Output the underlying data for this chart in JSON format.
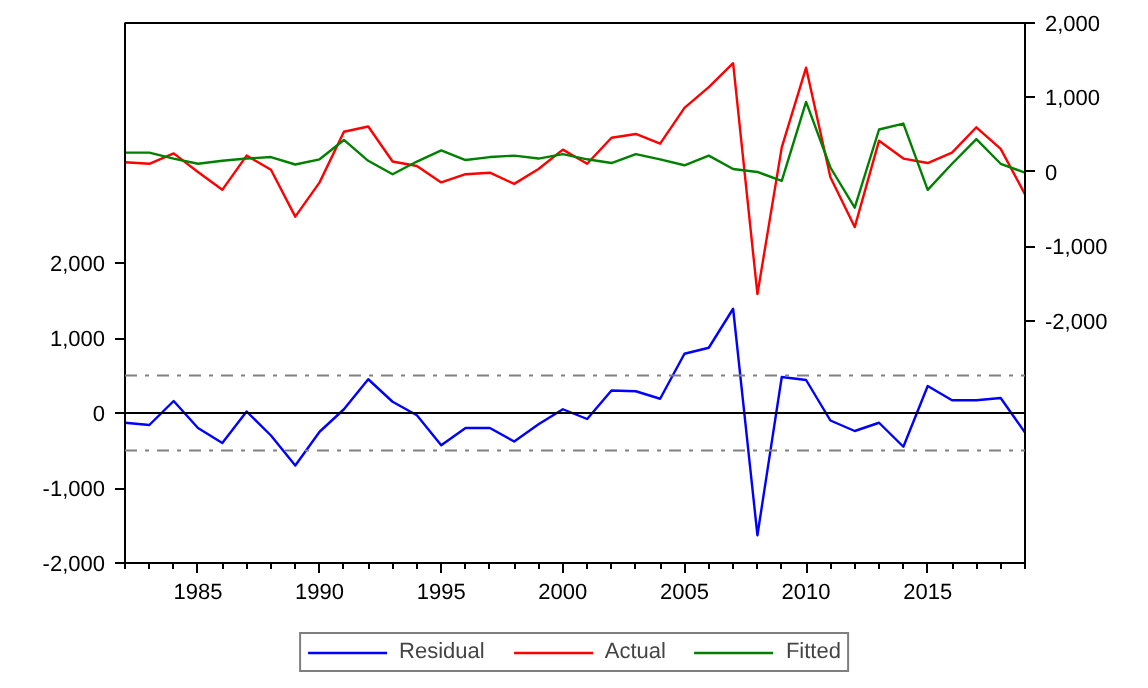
{
  "chart_data": {
    "type": "line",
    "x": [
      1982,
      1983,
      1984,
      1985,
      1986,
      1987,
      1988,
      1989,
      1990,
      1991,
      1992,
      1993,
      1994,
      1995,
      1996,
      1997,
      1998,
      1999,
      2000,
      2001,
      2002,
      2003,
      2004,
      2005,
      2006,
      2007,
      2008,
      2009,
      2010,
      2011,
      2012,
      2013,
      2014,
      2015,
      2016,
      2017,
      2018,
      2019
    ],
    "series": [
      {
        "name": "Residual",
        "color": "#0000ff",
        "values": [
          -130,
          -160,
          160,
          -200,
          -400,
          20,
          -300,
          -700,
          -250,
          50,
          450,
          150,
          -30,
          -430,
          -200,
          -200,
          -380,
          -150,
          50,
          -80,
          300,
          290,
          190,
          790,
          870,
          1390,
          -1630,
          480,
          440,
          -100,
          -240,
          -130,
          -450,
          360,
          170,
          170,
          200,
          -260
        ]
      },
      {
        "name": "Actual",
        "color": "#ff0000",
        "axis": "y2",
        "values": [
          130,
          110,
          250,
          0,
          -240,
          220,
          30,
          -600,
          -140,
          540,
          610,
          140,
          80,
          -140,
          -30,
          -10,
          -160,
          40,
          300,
          110,
          460,
          510,
          380,
          860,
          1140,
          1460,
          -1640,
          330,
          1400,
          -70,
          -740,
          420,
          180,
          120,
          260,
          600,
          310,
          -300
        ]
      },
      {
        "name": "Fitted",
        "color": "#008000",
        "axis": "y2",
        "values": [
          260,
          260,
          180,
          110,
          150,
          180,
          200,
          100,
          170,
          430,
          150,
          -30,
          140,
          290,
          160,
          200,
          220,
          180,
          240,
          170,
          120,
          240,
          170,
          90,
          220,
          40,
          0,
          -120,
          940,
          60,
          -480,
          570,
          650,
          -240,
          110,
          440,
          110,
          -10
        ]
      }
    ],
    "xlim": [
      1982,
      2019
    ],
    "xticks": [
      1985,
      1990,
      1995,
      2000,
      2005,
      2010,
      2015
    ],
    "ylim": [
      -2000,
      5200
    ],
    "yticks": [
      {
        "value": -2000,
        "label": "-2,000"
      },
      {
        "value": -1000,
        "label": "-1,000"
      },
      0,
      {
        "value": 1000,
        "label": "1,000"
      },
      {
        "value": 2000,
        "label": "2,000"
      }
    ],
    "y2lim": [
      -5250,
      2000
    ],
    "y2ticks": [
      {
        "value": -2000,
        "label": "-2,000"
      },
      {
        "value": -1000,
        "label": "-1,000"
      },
      0,
      {
        "value": 1000,
        "label": "1,000"
      },
      {
        "value": 2000,
        "label": "2,000"
      }
    ],
    "ref_lines": [
      {
        "axis": "y",
        "value": 0,
        "color": "#000000",
        "line_style": "solid"
      },
      {
        "axis": "y",
        "value": 500,
        "color": "#808080",
        "line_style": "dashdot"
      },
      {
        "axis": "y",
        "value": -500,
        "color": "#808080",
        "line_style": "dashdot"
      }
    ],
    "grid": false,
    "legend": "bottom",
    "line_style": "solid",
    "marker": "none"
  }
}
